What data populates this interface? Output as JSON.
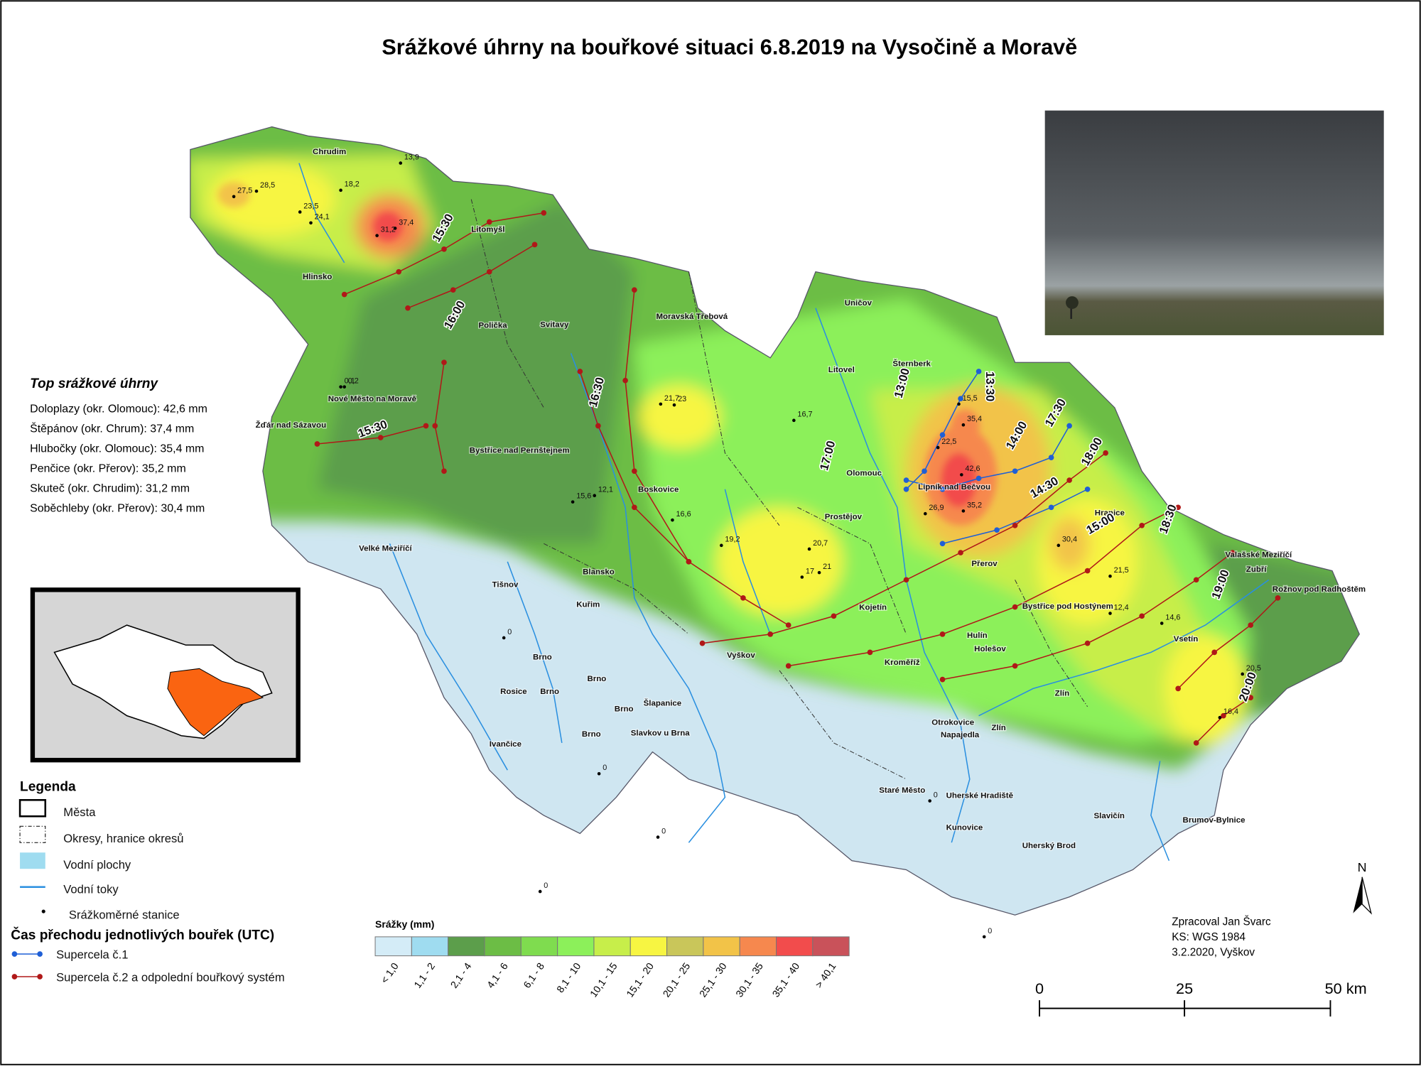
{
  "title": "Srážkové úhrny na bouřkové situaci 6.8.2019 na Vysočině a Moravě",
  "top_totals": {
    "title": "Top srážkové úhrny",
    "items": [
      "Doloplazy (okr. Olomouc): 42,6 mm",
      "Štěpánov (okr. Chrum): 37,4 mm",
      "Hlubočky (okr. Olomouc): 35,4 mm",
      "Penčice (okr. Přerov): 35,2 mm",
      "Skuteč (okr. Chrudim): 31,2 mm",
      "Soběchleby (okr. Přerov): 30,4 mm"
    ]
  },
  "legend": {
    "title": "Legenda",
    "items": [
      "Města",
      "Okresy, hranice okresů",
      "Vodní plochy",
      "Vodní toky",
      "Srážkoměrné stanice"
    ],
    "storm_title": "Čas přechodu jednotlivých bouřek (UTC)",
    "storms": [
      {
        "name": "Supercela č.1",
        "color": "#1f5fd6"
      },
      {
        "name": "Supercela č.2 a odpolední bouřkový systém",
        "color": "#b01818"
      }
    ]
  },
  "color_scale": {
    "title": "Srážky (mm)",
    "classes": [
      {
        "label": "< 1,0",
        "color": "#d4ecf7"
      },
      {
        "label": "1,1 - 2",
        "color": "#9fdcf0"
      },
      {
        "label": "2,1 - 4",
        "color": "#5c9e4b"
      },
      {
        "label": "4,1 - 6",
        "color": "#6cbd45"
      },
      {
        "label": "6,1 - 8",
        "color": "#7fdc4f"
      },
      {
        "label": "8,1 - 10",
        "color": "#8cf05a"
      },
      {
        "label": "10,1 - 15",
        "color": "#c7ee4a"
      },
      {
        "label": "15,1 - 20",
        "color": "#f7f542"
      },
      {
        "label": "20,1 - 25",
        "color": "#c9c65a"
      },
      {
        "label": "25,1 - 30",
        "color": "#f2c348"
      },
      {
        "label": "30,1 - 35",
        "color": "#f6884e"
      },
      {
        "label": "35,1 - 40",
        "color": "#f24c4c"
      },
      {
        "label": "> 40,1",
        "color": "#c9525a"
      }
    ]
  },
  "towns": [
    "Chrudim",
    "Litomyšl",
    "Hlinsko",
    "Polička",
    "Svitavy",
    "Moravská Třebová",
    "Uničov",
    "Šternberk",
    "Litovel",
    "Nové Město na Moravě",
    "Žďár nad Sázavou",
    "Bystřice nad Pernštejnem",
    "Olomouc",
    "Lipník nad Bečvou",
    "Hranice",
    "Boskovice",
    "Prostějov",
    "Velké Meziříčí",
    "Přerov",
    "Valašské Meziříčí",
    "Zubří",
    "Rožnov pod Radhoštěm",
    "Blansko",
    "Tišnov",
    "Kuřim",
    "Kojetín",
    "Bystřice pod Hostýnem",
    "Hulín",
    "Holešov",
    "Vsetín",
    "Vyškov",
    "Kroměříž",
    "Brno",
    "Brno",
    "Rosice",
    "Brno",
    "Šlapanice",
    "Brno",
    "Zlín",
    "Otrokovice",
    "Napajedla",
    "Zlín",
    "Slavkov u Brna",
    "Brno",
    "Ivančice",
    "Staré Město",
    "Uherské Hradiště",
    "Kunovice",
    "Slavičín",
    "Brumov-Bylnice",
    "Uherský Brod"
  ],
  "times": [
    "15:30",
    "16:00",
    "15:30",
    "16:30",
    "17:00",
    "13:00",
    "13:30",
    "14:00",
    "14:30",
    "15:00",
    "17:30",
    "18:00",
    "18:30",
    "19:00",
    "20:00"
  ],
  "stations": [
    "42,6",
    "37,4",
    "35,4",
    "35,2",
    "31,2",
    "30,4",
    "27,5",
    "28,5",
    "23,5",
    "24,1",
    "18,2",
    "13,9",
    "22,5",
    "26,9",
    "21,7",
    "23",
    "20,7",
    "17",
    "21",
    "19,2",
    "16,6",
    "15,6",
    "12,1",
    "16,7",
    "12,4",
    "15,5",
    "21,5",
    "14,6",
    "20,5",
    "16,4",
    "0",
    "0",
    "0",
    "0",
    "0,1",
    "0,2",
    "0",
    "0"
  ],
  "credits": [
    "Zpracoval Jan Švarc",
    "KS: WGS 1984",
    "3.2.2020, Vyškov"
  ],
  "scale_bar": [
    "0",
    "25",
    "50 km"
  ],
  "north": "N"
}
